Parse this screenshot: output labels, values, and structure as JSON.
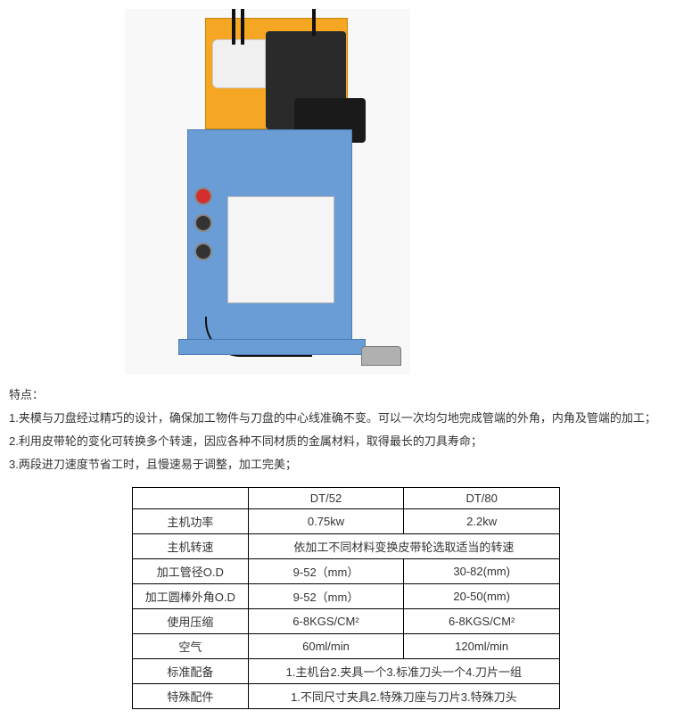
{
  "features": {
    "heading": "特点：",
    "items": [
      "1.夹模与刀盘经过精巧的设计，确保加工物件与刀盘的中心线准确不变。可以一次均匀地完成管端的外角，内角及管端的加工；",
      "2.利用皮带轮的变化可转换多个转速，因应各种不同材质的金属材料，取得最长的刀具寿命；",
      "3.两段进刀速度节省工时，且慢速易于调整，加工完美；"
    ]
  },
  "table": {
    "header": {
      "model_a": "DT/52",
      "model_b": "DT/80"
    },
    "rows": [
      {
        "label": "主机功率",
        "a": "0.75kw",
        "b": "2.2kw"
      },
      {
        "label": "主机转速",
        "span": "依加工不同材料变换皮带轮选取适当的转速"
      },
      {
        "label": "加工管径O.D",
        "a": "9-52（mm）",
        "b": "30-82(mm)"
      },
      {
        "label": "加工圆棒外角O.D",
        "a": "9-52（mm）",
        "b": "20-50(mm)"
      },
      {
        "label": "使用压缩",
        "a": "6-8KGS/CM²",
        "b": "6-8KGS/CM²"
      },
      {
        "label": "空气",
        "a": "60ml/min",
        "b": "120ml/min"
      },
      {
        "label": "标准配备",
        "span": "1.主机台2.夹具一个3.标准刀头一个4.刀片一组"
      },
      {
        "label": "特殊配件",
        "span": "1.不同尺寸夹具2.特殊刀座与刀片3.特殊刀头"
      }
    ]
  }
}
